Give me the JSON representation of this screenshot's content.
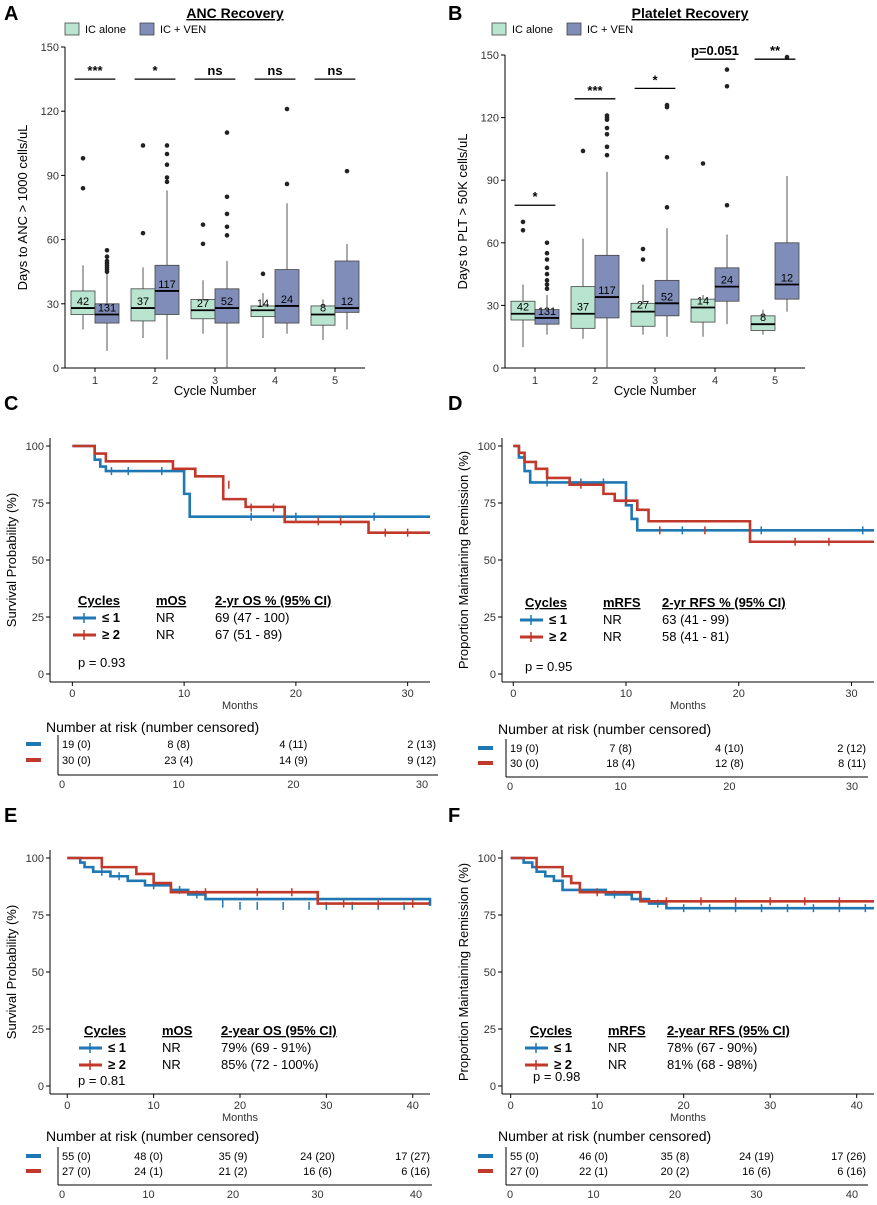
{
  "chart_data": [
    {
      "panel": "A",
      "type": "box",
      "title": "ANC Recovery",
      "xlabel": "Cycle Number",
      "ylabel": "Days to ANC > 1000 cells/uL",
      "ylim": [
        0,
        150
      ],
      "yticks": [
        0,
        30,
        60,
        90,
        120,
        150
      ],
      "categories": [
        "1",
        "2",
        "3",
        "4",
        "5"
      ],
      "legend": [
        "IC alone",
        "IC + VEN"
      ],
      "colors": {
        "ic": "#b8e4d0",
        "ven": "#7f8db8"
      },
      "significance": [
        "***",
        "*",
        "ns",
        "ns",
        "ns"
      ],
      "groups": [
        {
          "cycle": "1",
          "series": "IC alone",
          "n": "42",
          "q1": 25,
          "median": 28,
          "q3": 36,
          "wlo": 18,
          "whi": 48,
          "outliers": [
            84,
            98
          ]
        },
        {
          "cycle": "1",
          "series": "IC + VEN",
          "n": "131",
          "q1": 21,
          "median": 25,
          "q3": 30,
          "wlo": 8,
          "whi": 44,
          "outliers": [
            45,
            46,
            47,
            48,
            49,
            50,
            52,
            55
          ]
        },
        {
          "cycle": "2",
          "series": "IC alone",
          "n": "37",
          "q1": 22,
          "median": 28,
          "q3": 37,
          "wlo": 14,
          "whi": 47,
          "outliers": [
            63,
            104
          ]
        },
        {
          "cycle": "2",
          "series": "IC + VEN",
          "n": "117",
          "q1": 25,
          "median": 36,
          "q3": 48,
          "wlo": 4,
          "whi": 83,
          "outliers": [
            87,
            89,
            95,
            100,
            104
          ]
        },
        {
          "cycle": "3",
          "series": "IC alone",
          "n": "27",
          "q1": 23,
          "median": 27,
          "q3": 32,
          "wlo": 16,
          "whi": 41,
          "outliers": [
            58,
            67
          ]
        },
        {
          "cycle": "3",
          "series": "IC + VEN",
          "n": "52",
          "q1": 21,
          "median": 28,
          "q3": 37,
          "wlo": 0,
          "whi": 50,
          "outliers": [
            62,
            66,
            72,
            80,
            110
          ]
        },
        {
          "cycle": "4",
          "series": "IC alone",
          "n": "14",
          "q1": 24,
          "median": 27,
          "q3": 29,
          "wlo": 14,
          "whi": 35,
          "outliers": [
            44
          ]
        },
        {
          "cycle": "4",
          "series": "IC + VEN",
          "n": "24",
          "q1": 21,
          "median": 29,
          "q3": 46,
          "wlo": 16,
          "whi": 77,
          "outliers": [
            86,
            121
          ]
        },
        {
          "cycle": "5",
          "series": "IC alone",
          "n": "8",
          "q1": 20,
          "median": 25,
          "q3": 29,
          "wlo": 13,
          "whi": 32,
          "outliers": []
        },
        {
          "cycle": "5",
          "series": "IC + VEN",
          "n": "12",
          "q1": 26,
          "median": 28,
          "q3": 50,
          "wlo": 18,
          "whi": 58,
          "outliers": [
            92
          ]
        }
      ]
    },
    {
      "panel": "B",
      "type": "box",
      "title": "Platelet Recovery",
      "xlabel": "Cycle Number",
      "ylabel": "Days to PLT > 50K cells/uL",
      "ylim": [
        0,
        150
      ],
      "yticks": [
        0,
        30,
        60,
        90,
        120,
        150
      ],
      "categories": [
        "1",
        "2",
        "3",
        "4",
        "5"
      ],
      "legend": [
        "IC alone",
        "IC + VEN"
      ],
      "colors": {
        "ic": "#b8e4d0",
        "ven": "#7f8db8"
      },
      "significance": [
        "*",
        "***",
        "*",
        "p=0.051",
        "**"
      ],
      "groups": [
        {
          "cycle": "1",
          "series": "IC alone",
          "n": "42",
          "q1": 23,
          "median": 26,
          "q3": 32,
          "wlo": 10,
          "whi": 40,
          "outliers": [
            66,
            70
          ]
        },
        {
          "cycle": "1",
          "series": "IC + VEN",
          "n": "131",
          "q1": 21,
          "median": 24,
          "q3": 28,
          "wlo": 16,
          "whi": 35,
          "outliers": [
            38,
            40,
            42,
            45,
            48,
            52,
            55,
            60
          ]
        },
        {
          "cycle": "2",
          "series": "IC alone",
          "n": "37",
          "q1": 19,
          "median": 26,
          "q3": 39,
          "wlo": 14,
          "whi": 62,
          "outliers": [
            104
          ]
        },
        {
          "cycle": "2",
          "series": "IC + VEN",
          "n": "117",
          "q1": 24,
          "median": 34,
          "q3": 54,
          "wlo": 0,
          "whi": 94,
          "outliers": [
            102,
            106,
            112,
            115,
            119,
            120,
            121
          ]
        },
        {
          "cycle": "3",
          "series": "IC alone",
          "n": "27",
          "q1": 20,
          "median": 27,
          "q3": 31,
          "wlo": 16,
          "whi": 40,
          "outliers": [
            52,
            57
          ]
        },
        {
          "cycle": "3",
          "series": "IC + VEN",
          "n": "52",
          "q1": 25,
          "median": 31,
          "q3": 42,
          "wlo": 15,
          "whi": 67,
          "outliers": [
            77,
            101,
            125,
            126
          ]
        },
        {
          "cycle": "4",
          "series": "IC alone",
          "n": "14",
          "q1": 22,
          "median": 29,
          "q3": 33,
          "wlo": 15,
          "whi": 35,
          "outliers": [
            98
          ]
        },
        {
          "cycle": "4",
          "series": "IC + VEN",
          "n": "24",
          "q1": 32,
          "median": 39,
          "q3": 48,
          "wlo": 21,
          "whi": 64,
          "outliers": [
            78,
            135,
            143
          ]
        },
        {
          "cycle": "5",
          "series": "IC alone",
          "n": "8",
          "q1": 18,
          "median": 21,
          "q3": 25,
          "wlo": 16,
          "whi": 28,
          "outliers": []
        },
        {
          "cycle": "5",
          "series": "IC + VEN",
          "n": "12",
          "q1": 33,
          "median": 40,
          "q3": 60,
          "wlo": 27,
          "whi": 92,
          "outliers": [
            149
          ]
        }
      ]
    },
    {
      "panel": "C",
      "type": "line",
      "xlabel": "Months",
      "ylabel": "Survival Probability (%)",
      "xlim": [
        -2,
        32
      ],
      "ylim": [
        0,
        100
      ],
      "xticks": [
        0,
        10,
        20,
        30
      ],
      "yticks": [
        0,
        25,
        50,
        75,
        100
      ],
      "series": [
        {
          "name": "≤ 1",
          "color": "#1f77b4",
          "x": [
            0,
            2,
            2.5,
            3,
            10,
            10.5,
            32
          ],
          "y": [
            100,
            94,
            91,
            89,
            79,
            69,
            69
          ],
          "censor": [
            [
              3.5,
              89
            ],
            [
              5,
              89
            ],
            [
              8,
              89
            ],
            [
              16,
              69
            ],
            [
              20,
              69
            ],
            [
              27,
              69
            ]
          ]
        },
        {
          "name": "≥ 2",
          "color": "#c0392b",
          "x": [
            0,
            2,
            3,
            9,
            11,
            13.5,
            15.5,
            19,
            26.5,
            32
          ],
          "y": [
            100,
            96.7,
            93.3,
            90,
            86.7,
            76.7,
            73.3,
            66.7,
            62,
            62
          ],
          "censor": [
            [
              14,
              83
            ],
            [
              16,
              73
            ],
            [
              18,
              73
            ],
            [
              22,
              67
            ],
            [
              24,
              67
            ],
            [
              28,
              62
            ],
            [
              30,
              62
            ]
          ]
        }
      ],
      "table": {
        "headers": [
          "Cycles",
          "mOS",
          "2-yr OS % (95% CI)"
        ],
        "rows": [
          {
            "label": "≤ 1",
            "median": "NR",
            "ci": "69 (47 - 100)"
          },
          {
            "label": "≥ 2",
            "median": "NR",
            "ci": "67 (51 - 89)"
          }
        ]
      },
      "pvalue": "p = 0.93",
      "risk": {
        "title": "Number at risk (number censored)",
        "times": [
          0,
          10,
          20,
          30
        ],
        "rows": [
          [
            "19 (0)",
            "8 (8)",
            "4 (11)",
            "2 (13)"
          ],
          [
            "30 (0)",
            "23 (4)",
            "14 (9)",
            "9 (12)"
          ]
        ]
      }
    },
    {
      "panel": "D",
      "type": "line",
      "xlabel": "Months",
      "ylabel": "Proportion Maintaining Remission (%)",
      "xlim": [
        -1,
        32
      ],
      "ylim": [
        0,
        100
      ],
      "xticks": [
        0,
        10,
        20,
        30
      ],
      "yticks": [
        0,
        25,
        50,
        75,
        100
      ],
      "series": [
        {
          "name": "≤ 1",
          "color": "#1f77b4",
          "x": [
            0,
            0.5,
            1,
            1.5,
            10,
            10.5,
            11,
            32
          ],
          "y": [
            100,
            95,
            89,
            84,
            74,
            68,
            63,
            63
          ],
          "censor": [
            [
              3,
              84
            ],
            [
              6,
              84
            ],
            [
              8,
              84
            ],
            [
              15,
              63
            ],
            [
              22,
              63
            ],
            [
              31,
              63
            ]
          ]
        },
        {
          "name": "≥ 2",
          "color": "#c0392b",
          "x": [
            0,
            0.5,
            1,
            2,
            3,
            5,
            8,
            9,
            11,
            12,
            21,
            32
          ],
          "y": [
            100,
            97,
            93,
            90,
            86,
            83,
            79,
            76,
            72,
            67,
            58,
            58
          ],
          "censor": [
            [
              6,
              83
            ],
            [
              10,
              76
            ],
            [
              13,
              63
            ],
            [
              17,
              63
            ],
            [
              25,
              58
            ],
            [
              28,
              58
            ]
          ]
        }
      ],
      "table": {
        "headers": [
          "Cycles",
          "mRFS",
          "2-yr RFS % (95% CI)"
        ],
        "rows": [
          {
            "label": "≤ 1",
            "median": "NR",
            "ci": "63 (41 - 99)"
          },
          {
            "label": "≥ 2",
            "median": "NR",
            "ci": "58 (41 - 81)"
          }
        ]
      },
      "pvalue": "p = 0.95",
      "risk": {
        "title": "Number at risk (number censored)",
        "times": [
          0,
          10,
          20,
          30
        ],
        "rows": [
          [
            "19 (0)",
            "7 (8)",
            "4 (10)",
            "2 (12)"
          ],
          [
            "30 (0)",
            "18 (4)",
            "12 (8)",
            "8 (11)"
          ]
        ]
      }
    },
    {
      "panel": "E",
      "type": "line",
      "xlabel": "Months",
      "ylabel": "Survival Probability (%)",
      "xlim": [
        -2,
        42
      ],
      "ylim": [
        0,
        100
      ],
      "xticks": [
        0,
        10,
        20,
        30,
        40
      ],
      "yticks": [
        0,
        25,
        50,
        75,
        100
      ],
      "series": [
        {
          "name": "≤ 1",
          "color": "#1f77b4",
          "x": [
            0,
            1.5,
            2,
            3,
            5,
            7,
            9,
            12,
            14,
            16,
            42
          ],
          "y": [
            100,
            98,
            96,
            94,
            92,
            90,
            88,
            86,
            84,
            82,
            79
          ],
          "censor": [
            [
              4,
              94
            ],
            [
              6,
              92
            ],
            [
              10,
              88
            ],
            [
              13,
              86
            ],
            [
              15,
              84
            ],
            [
              18,
              80
            ],
            [
              20,
              79
            ],
            [
              22,
              79
            ],
            [
              25,
              79
            ],
            [
              28,
              79
            ],
            [
              30,
              79
            ],
            [
              33,
              79
            ],
            [
              36,
              79
            ],
            [
              39,
              79
            ]
          ]
        },
        {
          "name": "≥ 2",
          "color": "#c0392b",
          "x": [
            0,
            4,
            8,
            10,
            12,
            29,
            42
          ],
          "y": [
            100,
            96,
            93,
            89,
            85,
            80,
            80
          ],
          "censor": [
            [
              16,
              85
            ],
            [
              22,
              85
            ],
            [
              26,
              85
            ],
            [
              32,
              80
            ],
            [
              36,
              80
            ],
            [
              40,
              80
            ]
          ]
        }
      ],
      "table": {
        "headers": [
          "Cycles",
          "mOS",
          "2-year OS (95% CI)"
        ],
        "rows": [
          {
            "label": "≤ 1",
            "median": "NR",
            "ci": "79% (69 - 91%)"
          },
          {
            "label": "≥ 2",
            "median": "NR",
            "ci": "85% (72 - 100%)"
          }
        ]
      },
      "pvalue": "p = 0.81",
      "risk": {
        "title": "Number at risk (number censored)",
        "times": [
          0,
          10,
          20,
          30,
          40
        ],
        "rows": [
          [
            "55 (0)",
            "48 (0)",
            "35 (9)",
            "24 (20)",
            "17 (27)"
          ],
          [
            "27 (0)",
            "24 (1)",
            "21 (2)",
            "16 (6)",
            "6 (16)"
          ]
        ]
      }
    },
    {
      "panel": "F",
      "type": "line",
      "xlabel": "Months",
      "ylabel": "Proportion Maintaining Remission (%)",
      "xlim": [
        -1,
        42
      ],
      "ylim": [
        0,
        100
      ],
      "xticks": [
        0,
        10,
        20,
        30,
        40
      ],
      "yticks": [
        0,
        25,
        50,
        75,
        100
      ],
      "series": [
        {
          "name": "≤ 1",
          "color": "#1f77b4",
          "x": [
            0,
            1.5,
            2.5,
            3,
            4,
            5,
            6,
            11,
            14,
            16,
            18,
            42
          ],
          "y": [
            100,
            98,
            96,
            94,
            92,
            90,
            86,
            84,
            82,
            80,
            78,
            78
          ],
          "censor": [
            [
              12,
              84
            ],
            [
              17,
              80
            ],
            [
              20,
              78
            ],
            [
              23,
              78
            ],
            [
              26,
              78
            ],
            [
              29,
              78
            ],
            [
              32,
              78
            ],
            [
              35,
              78
            ],
            [
              38,
              78
            ],
            [
              41,
              78
            ]
          ]
        },
        {
          "name": "≥ 2",
          "color": "#c0392b",
          "x": [
            0,
            3,
            6,
            7,
            8,
            11,
            15,
            42
          ],
          "y": [
            100,
            96,
            92,
            89,
            85,
            85,
            81,
            81
          ],
          "censor": [
            [
              10,
              85
            ],
            [
              18,
              81
            ],
            [
              22,
              81
            ],
            [
              26,
              81
            ],
            [
              30,
              81
            ],
            [
              34,
              81
            ],
            [
              38,
              81
            ]
          ]
        }
      ],
      "table": {
        "headers": [
          "Cycles",
          "mRFS",
          "2-year RFS (95% CI)"
        ],
        "rows": [
          {
            "label": "≤ 1",
            "median": "NR",
            "ci": "78% (67 - 90%)"
          },
          {
            "label": "≥ 2",
            "median": "NR",
            "ci": "81% (68 - 98%)"
          }
        ]
      },
      "pvalue": "p = 0.98",
      "risk": {
        "title": "Number at risk (number censored)",
        "times": [
          0,
          10,
          20,
          30,
          40
        ],
        "rows": [
          [
            "55 (0)",
            "46 (0)",
            "35 (8)",
            "24 (19)",
            "17 (26)"
          ],
          [
            "27 (0)",
            "22 (1)",
            "20 (2)",
            "16 (6)",
            "6 (16)"
          ]
        ]
      }
    }
  ]
}
